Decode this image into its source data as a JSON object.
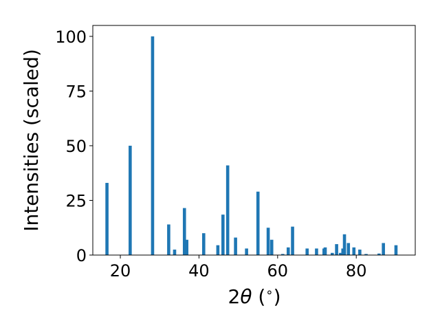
{
  "chart_data": {
    "type": "bar",
    "title": "",
    "xlabel_parts": {
      "prefix": "2",
      "symbol": "θ",
      "suffix": " (",
      "degree": "∘",
      "close": ")"
    },
    "ylabel": "Intensities (scaled)",
    "xlim": [
      13,
      95
    ],
    "ylim": [
      0,
      105
    ],
    "xticks": [
      20,
      40,
      60,
      80
    ],
    "yticks": [
      0,
      25,
      50,
      75,
      100
    ],
    "grid": false,
    "bar_color": "#1f77b4",
    "x": [
      16.6,
      22.5,
      28.2,
      32.3,
      33.8,
      36.3,
      36.9,
      41.2,
      44.8,
      46.1,
      47.3,
      49.3,
      52.1,
      55.0,
      57.6,
      58.5,
      61.3,
      62.7,
      63.8,
      67.5,
      69.9,
      71.8,
      72.1,
      73.9,
      75.0,
      76.0,
      76.6,
      77.0,
      78.0,
      79.4,
      80.9,
      82.5,
      85.8,
      86.9,
      90.1
    ],
    "values": [
      33,
      50,
      100,
      14,
      2.5,
      21.5,
      7,
      10,
      4.5,
      18.5,
      41,
      8,
      3,
      29,
      12.5,
      7,
      0.5,
      3.5,
      13,
      3,
      3,
      3,
      3.5,
      1,
      5,
      1,
      3,
      9.5,
      5.5,
      3.5,
      2.5,
      0.5,
      0.7,
      5.5,
      4.5
    ]
  }
}
